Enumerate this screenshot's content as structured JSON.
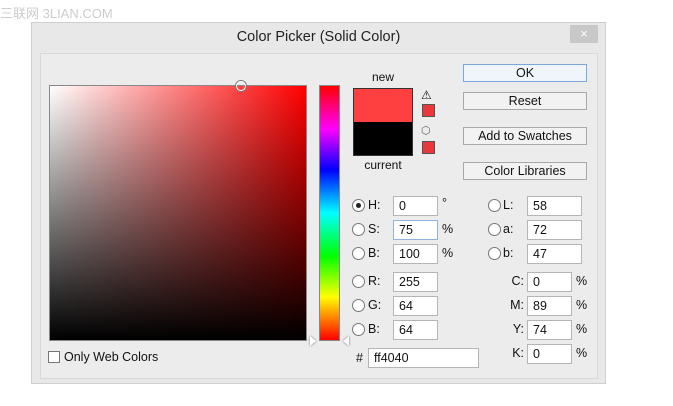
{
  "watermark": "三联网 3LIAN.COM",
  "dialog": {
    "title": "Color Picker (Solid Color)",
    "close": "×"
  },
  "swatch": {
    "new_label": "new",
    "current_label": "current",
    "new_color": "#ff4040",
    "current_color": "#000000",
    "warning_icon": "gamut-warning-icon",
    "cube_icon": "web-safe-cube-icon"
  },
  "buttons": {
    "ok": "OK",
    "reset": "Reset",
    "add": "Add to Swatches",
    "libraries": "Color Libraries"
  },
  "only_web": {
    "label": "Only Web Colors",
    "checked": false
  },
  "hsb": [
    {
      "label": "H:",
      "value": "0",
      "unit": "°",
      "selected": true
    },
    {
      "label": "S:",
      "value": "75",
      "unit": "%"
    },
    {
      "label": "B:",
      "value": "100",
      "unit": "%"
    }
  ],
  "rgb": [
    {
      "label": "R:",
      "value": "255"
    },
    {
      "label": "G:",
      "value": "64"
    },
    {
      "label": "B:",
      "value": "64"
    }
  ],
  "lab": [
    {
      "label": "L:",
      "value": "58"
    },
    {
      "label": "a:",
      "value": "72"
    },
    {
      "label": "b:",
      "value": "47"
    }
  ],
  "cmyk": [
    {
      "label": "C:",
      "value": "0",
      "unit": "%"
    },
    {
      "label": "M:",
      "value": "89",
      "unit": "%"
    },
    {
      "label": "Y:",
      "value": "74",
      "unit": "%"
    },
    {
      "label": "K:",
      "value": "0",
      "unit": "%"
    }
  ],
  "hex": {
    "label": "#",
    "value": "ff4040"
  }
}
